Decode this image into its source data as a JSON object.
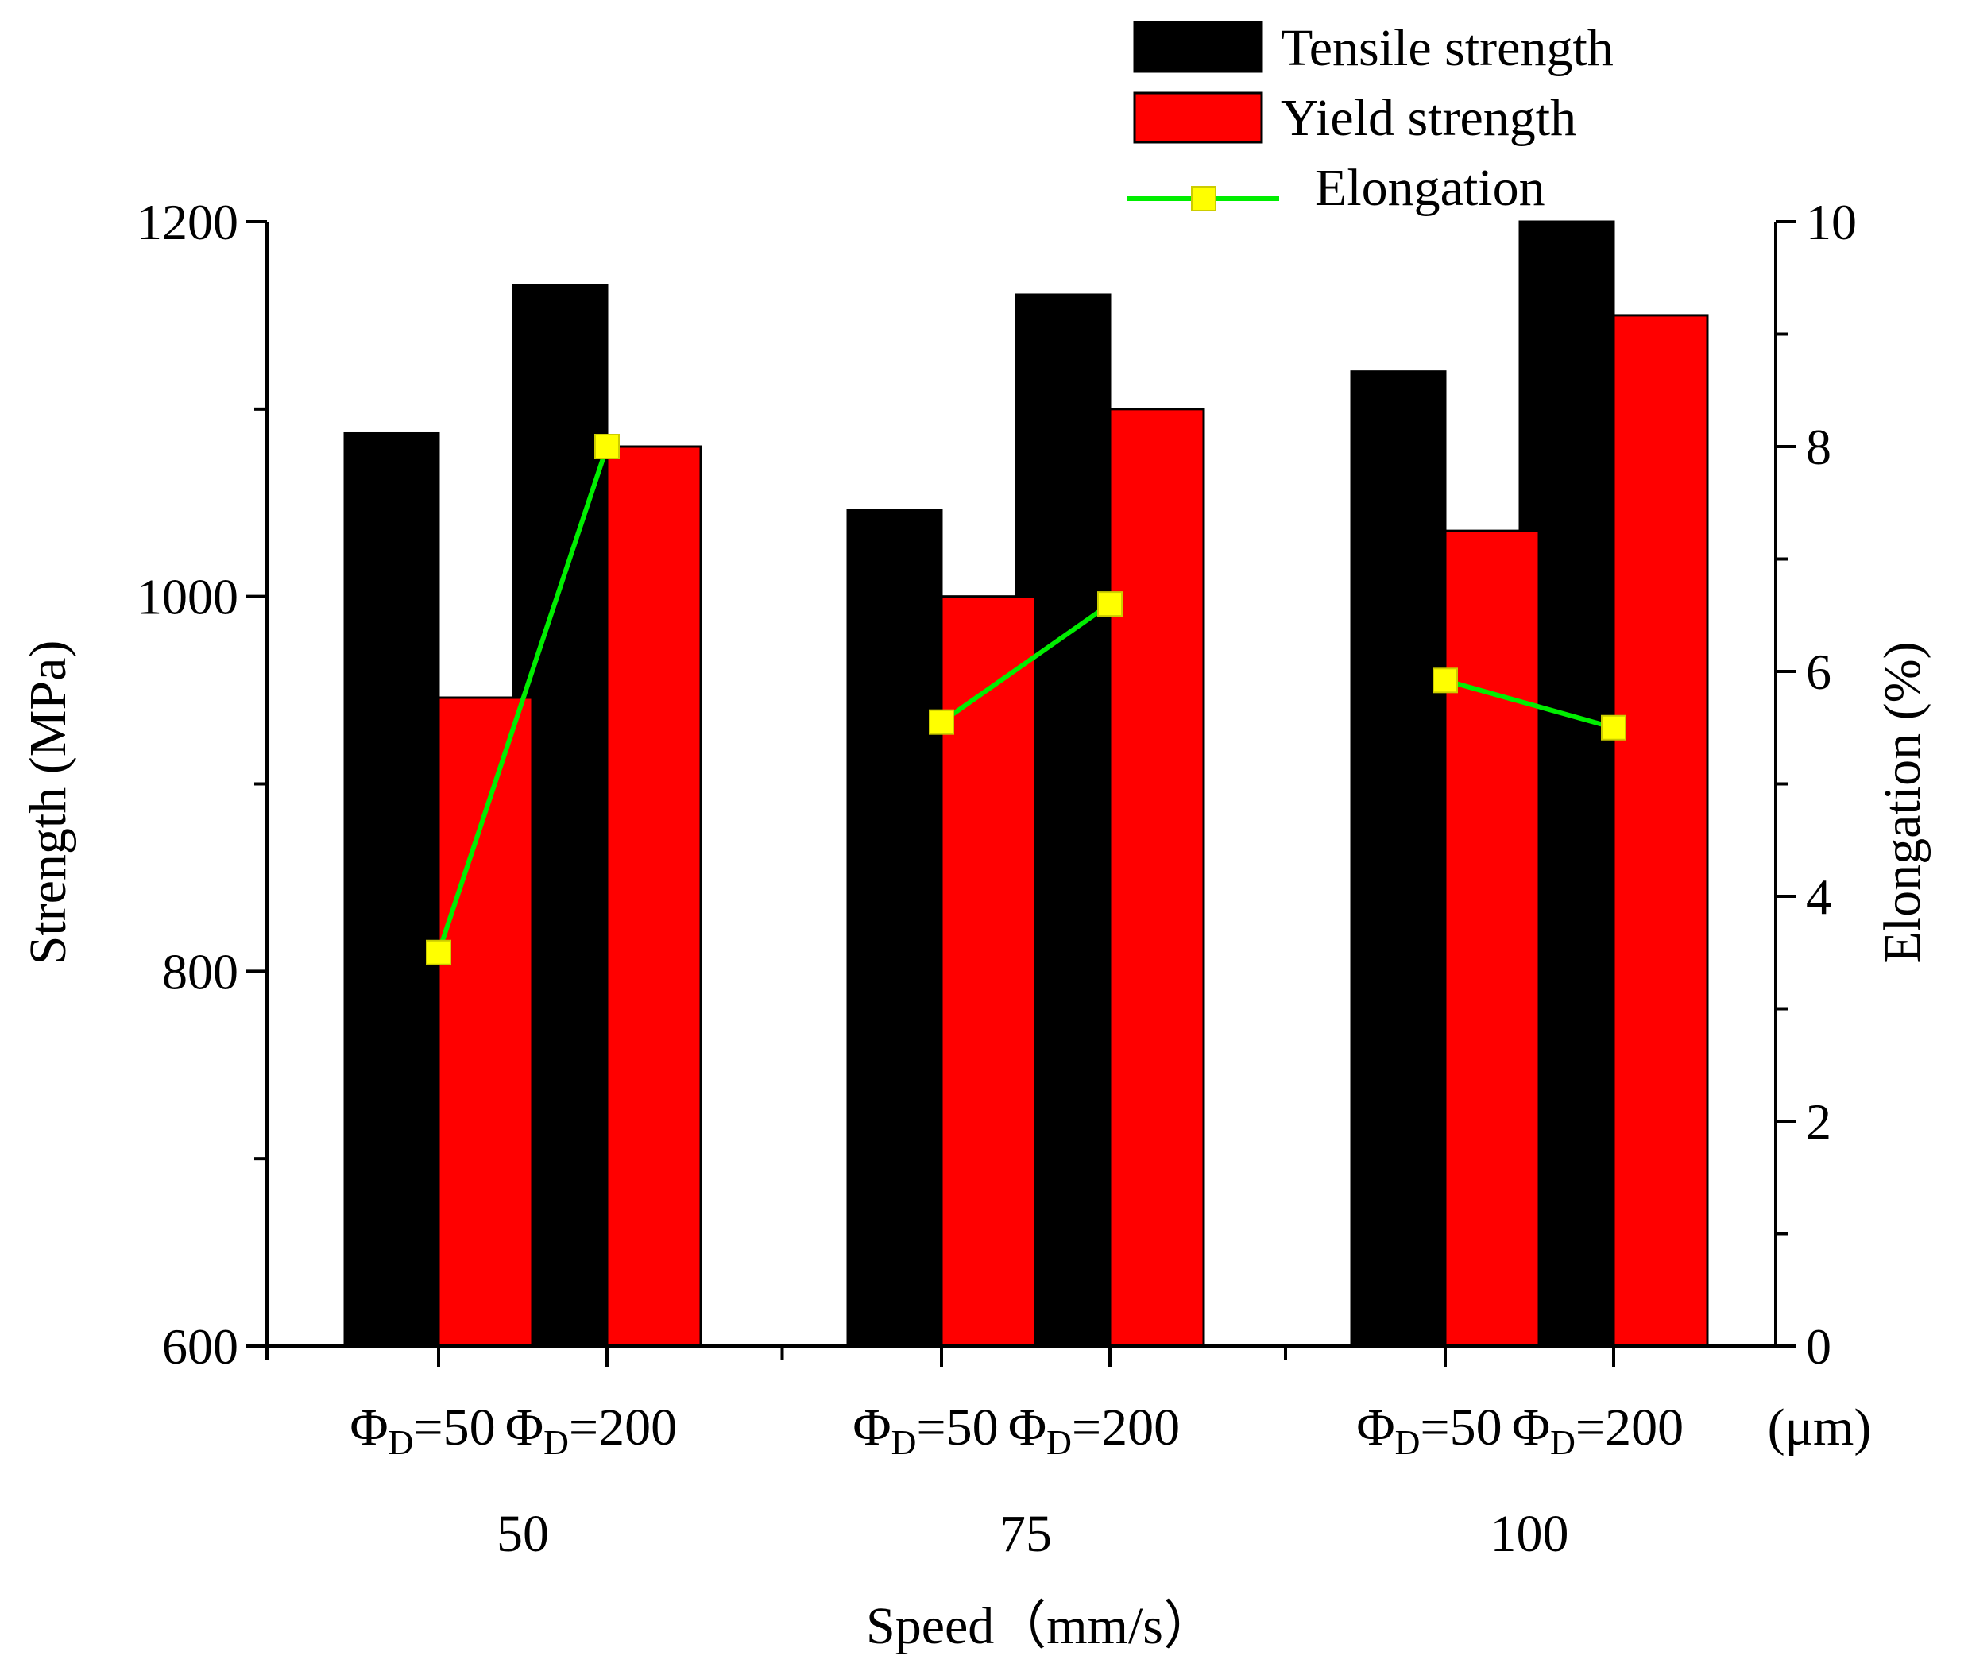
{
  "chart_data": {
    "type": "bar",
    "xlabel": "Speed（mm/s）",
    "ylabel_left": "Strength (MPa)",
    "ylabel_right": "Elongation (%)",
    "ylim_left": [
      600,
      1200
    ],
    "ylim_right": [
      0,
      10
    ],
    "left_ticks": [
      "600",
      "800",
      "1000",
      "1200"
    ],
    "right_ticks": [
      "0",
      "2",
      "4",
      "6",
      "8",
      "10"
    ],
    "groups": [
      {
        "speed": "50",
        "diameters": [
          "50",
          "200"
        ]
      },
      {
        "speed": "75",
        "diameters": [
          "50",
          "200"
        ]
      },
      {
        "speed": "100",
        "diameters": [
          "50",
          "200"
        ]
      }
    ],
    "diameter_symbol": "Φ",
    "diameter_subscript": "D",
    "diameter_unit": "(μm)",
    "series": [
      {
        "name": "Tensile strength",
        "axis": "left",
        "kind": "bar",
        "color": "#000000",
        "values": [
          1087,
          1166,
          1046,
          1161,
          1120,
          1200
        ]
      },
      {
        "name": "Yield strength",
        "axis": "left",
        "kind": "bar",
        "color": "#ff0000",
        "values": [
          946,
          1080,
          1000,
          1100,
          1035,
          1150
        ]
      },
      {
        "name": "Elongation",
        "axis": "right",
        "kind": "line",
        "color": "#00ee00",
        "marker_color": "#ffff00",
        "values": [
          3.5,
          8.0,
          5.55,
          6.6,
          5.92,
          5.5
        ]
      }
    ],
    "legend": {
      "position": "top-right",
      "entries": [
        "Tensile strength",
        "Yield strength",
        "Elongation"
      ]
    }
  }
}
